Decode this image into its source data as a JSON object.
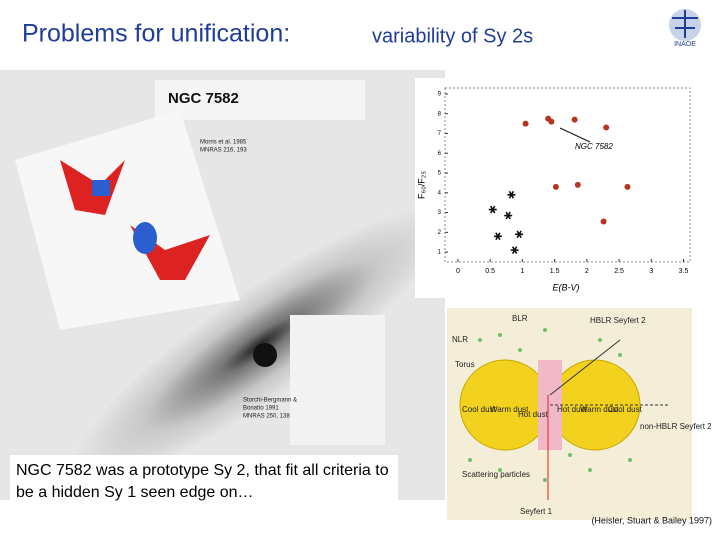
{
  "header": {
    "title_main": "Problems for unification:",
    "title_rest": "variability of Sy 2s",
    "logo": "INAOE"
  },
  "image_labels": {
    "galaxy": "NGC 7582",
    "ref1_line1": "Morris et al. 1985",
    "ref1_line2": "MNRAS 216, 193",
    "ref2_line1": "Storchi-Bergmann &",
    "ref2_line2": "Bonatto 1991",
    "ref2_line3": "MNRAS 250, 138"
  },
  "chart_data": {
    "type": "scatter",
    "xlabel": "E(B-V)",
    "ylabel": "F₆₀/F₂₅",
    "annotation": "NGC 7582",
    "xlim": [
      -0.2,
      3.6
    ],
    "ylim": [
      0.5,
      9.3
    ],
    "xticks": [
      0,
      0.5,
      1,
      1.5,
      2,
      2.5,
      3,
      3.5
    ],
    "yticks": [
      1,
      2,
      3,
      4,
      5,
      6,
      7,
      8,
      9
    ],
    "series": [
      {
        "color": "#b5361f",
        "marker": "circle",
        "x": [
          1.05,
          1.4,
          1.45,
          1.81,
          2.3,
          1.52,
          1.86,
          2.63,
          2.26
        ],
        "values": [
          7.5,
          7.75,
          7.6,
          7.7,
          7.3,
          4.3,
          4.4,
          4.3,
          2.55
        ]
      },
      {
        "color": "#111111",
        "marker": "star",
        "x": [
          0.83,
          0.54,
          0.78,
          0.62,
          0.95,
          0.88
        ],
        "values": [
          3.9,
          3.15,
          2.85,
          1.8,
          1.9,
          1.1
        ]
      }
    ]
  },
  "diagram": {
    "blr": "BLR",
    "hblr": "HBLR Seyfert 2",
    "nlr": "NLR",
    "torus": "Torus",
    "cool_left": "Cool dust",
    "warm_left": "Warm dust",
    "hot_left": "Hot dust",
    "hot_right": "Hot dust",
    "warm_right": "Warm dust",
    "cool_right": "Cool dust",
    "non_hblr": "non-HBLR Seyfert 2",
    "scattering": "Scattering particles",
    "sy1": "Seyfert 1"
  },
  "caption": "NGC 7582 was a prototype Sy 2, that fit all criteria to be a hidden Sy 1 seen edge on…",
  "citation": "(Heisler, Stuart & Bailey 1997)"
}
